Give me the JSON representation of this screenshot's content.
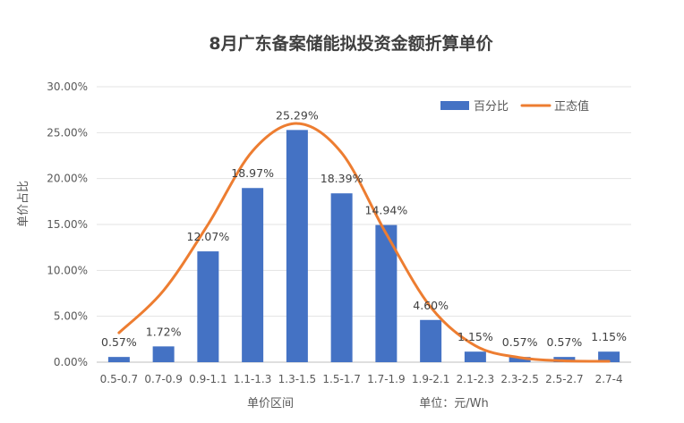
{
  "chart_data": {
    "type": "bar",
    "title": "8月广东备案储能拟投资金额折算单价",
    "xlabel": "单价区间",
    "ylabel": "单价占比",
    "unit_note": "单位：元/Wh",
    "categories": [
      "0.5-0.7",
      "0.7-0.9",
      "0.9-1.1",
      "1.1-1.3",
      "1.3-1.5",
      "1.5-1.7",
      "1.7-1.9",
      "1.9-2.1",
      "2.1-2.3",
      "2.3-2.5",
      "2.5-2.7",
      "2.7-4"
    ],
    "series": [
      {
        "name": "百分比",
        "type": "bar",
        "color": "#4472C4",
        "values": [
          0.57,
          1.72,
          12.07,
          18.97,
          25.29,
          18.39,
          14.94,
          4.6,
          1.15,
          0.57,
          0.57,
          1.15
        ],
        "labels": [
          "0.57%",
          "1.72%",
          "12.07%",
          "18.97%",
          "25.29%",
          "18.39%",
          "14.94%",
          "4.60%",
          "1.15%",
          "0.57%",
          "0.57%",
          "1.15%"
        ]
      },
      {
        "name": "正态值",
        "type": "line",
        "smooth": true,
        "color": "#ED7D31",
        "values": [
          3.2,
          7.8,
          15.0,
          23.0,
          26.0,
          22.8,
          14.0,
          6.0,
          1.8,
          0.5,
          0.15,
          0.1
        ]
      }
    ],
    "ylim": [
      0,
      30
    ],
    "yticks": [
      "0.00%",
      "5.00%",
      "10.00%",
      "15.00%",
      "20.00%",
      "25.00%",
      "30.00%"
    ],
    "ytick_values": [
      0,
      5,
      10,
      15,
      20,
      25,
      30
    ],
    "grid": true,
    "legend_position": "top-right"
  }
}
